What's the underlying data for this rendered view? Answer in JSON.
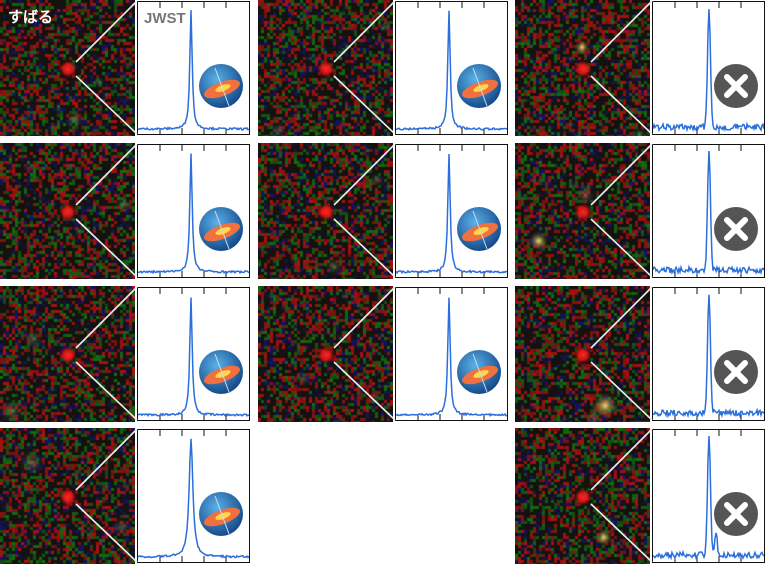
{
  "labels": {
    "telescope_ground": "すばる",
    "telescope_space": "JWST"
  },
  "colors": {
    "spectrum": "#2a6fdc",
    "reject_badge": "#555555",
    "source": "#ff2020"
  },
  "columns": [
    {
      "panels": [
        {
          "kind": "disk-icon"
        },
        {
          "kind": "disk-icon"
        },
        {
          "kind": "disk-icon"
        },
        {
          "kind": "disk-icon"
        }
      ]
    },
    {
      "panels": [
        {
          "kind": "disk-icon"
        },
        {
          "kind": "disk-icon"
        },
        {
          "kind": "disk-icon"
        }
      ]
    },
    {
      "panels": [
        {
          "kind": "cross-icon"
        },
        {
          "kind": "cross-icon"
        },
        {
          "kind": "cross-icon"
        },
        {
          "kind": "cross-icon"
        }
      ]
    }
  ]
}
